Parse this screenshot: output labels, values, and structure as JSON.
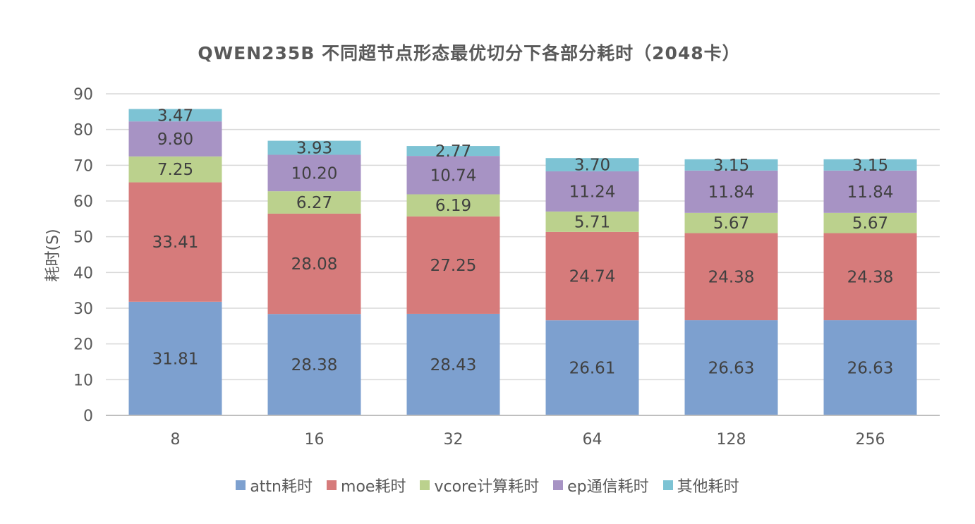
{
  "chart_data": {
    "type": "bar",
    "stacked": true,
    "title": "QWEN235B 不同超节点形态最优切分下各部分耗时（2048卡）",
    "xlabel": "",
    "ylabel": "耗时(S)",
    "ylim": [
      0,
      90
    ],
    "yticks": [
      "0",
      "10",
      "20",
      "30",
      "40",
      "50",
      "60",
      "70",
      "80",
      "90"
    ],
    "grid": true,
    "legend_position": "bottom",
    "categories": [
      "8",
      "16",
      "32",
      "64",
      "128",
      "256"
    ],
    "series": [
      {
        "name": "attn耗时",
        "color": "#7da0cf",
        "values": [
          31.81,
          28.38,
          28.43,
          26.61,
          26.63,
          26.63
        ],
        "labels": [
          "31.81",
          "28.38",
          "28.43",
          "26.61",
          "26.63",
          "26.63"
        ]
      },
      {
        "name": "moe耗时",
        "color": "#d67b7b",
        "values": [
          33.41,
          28.08,
          27.25,
          24.74,
          24.38,
          24.38
        ],
        "labels": [
          "33.41",
          "28.08",
          "27.25",
          "24.74",
          "24.38",
          "24.38"
        ]
      },
      {
        "name": "vcore计算耗时",
        "color": "#bbd18d",
        "values": [
          7.25,
          6.27,
          6.19,
          5.71,
          5.67,
          5.67
        ],
        "labels": [
          "7.25",
          "6.27",
          "6.19",
          "5.71",
          "5.67",
          "5.67"
        ]
      },
      {
        "name": "ep通信耗时",
        "color": "#a793c4",
        "values": [
          9.8,
          10.2,
          10.74,
          11.24,
          11.84,
          11.84
        ],
        "labels": [
          "9.80",
          "10.20",
          "10.74",
          "11.24",
          "11.84",
          "11.84"
        ]
      },
      {
        "name": "其他耗时",
        "color": "#7dc3d4",
        "values": [
          3.47,
          3.93,
          2.77,
          3.7,
          3.15,
          3.15
        ],
        "labels": [
          "3.47",
          "3.93",
          "2.77",
          "3.70",
          "3.15",
          "3.15"
        ]
      }
    ]
  }
}
